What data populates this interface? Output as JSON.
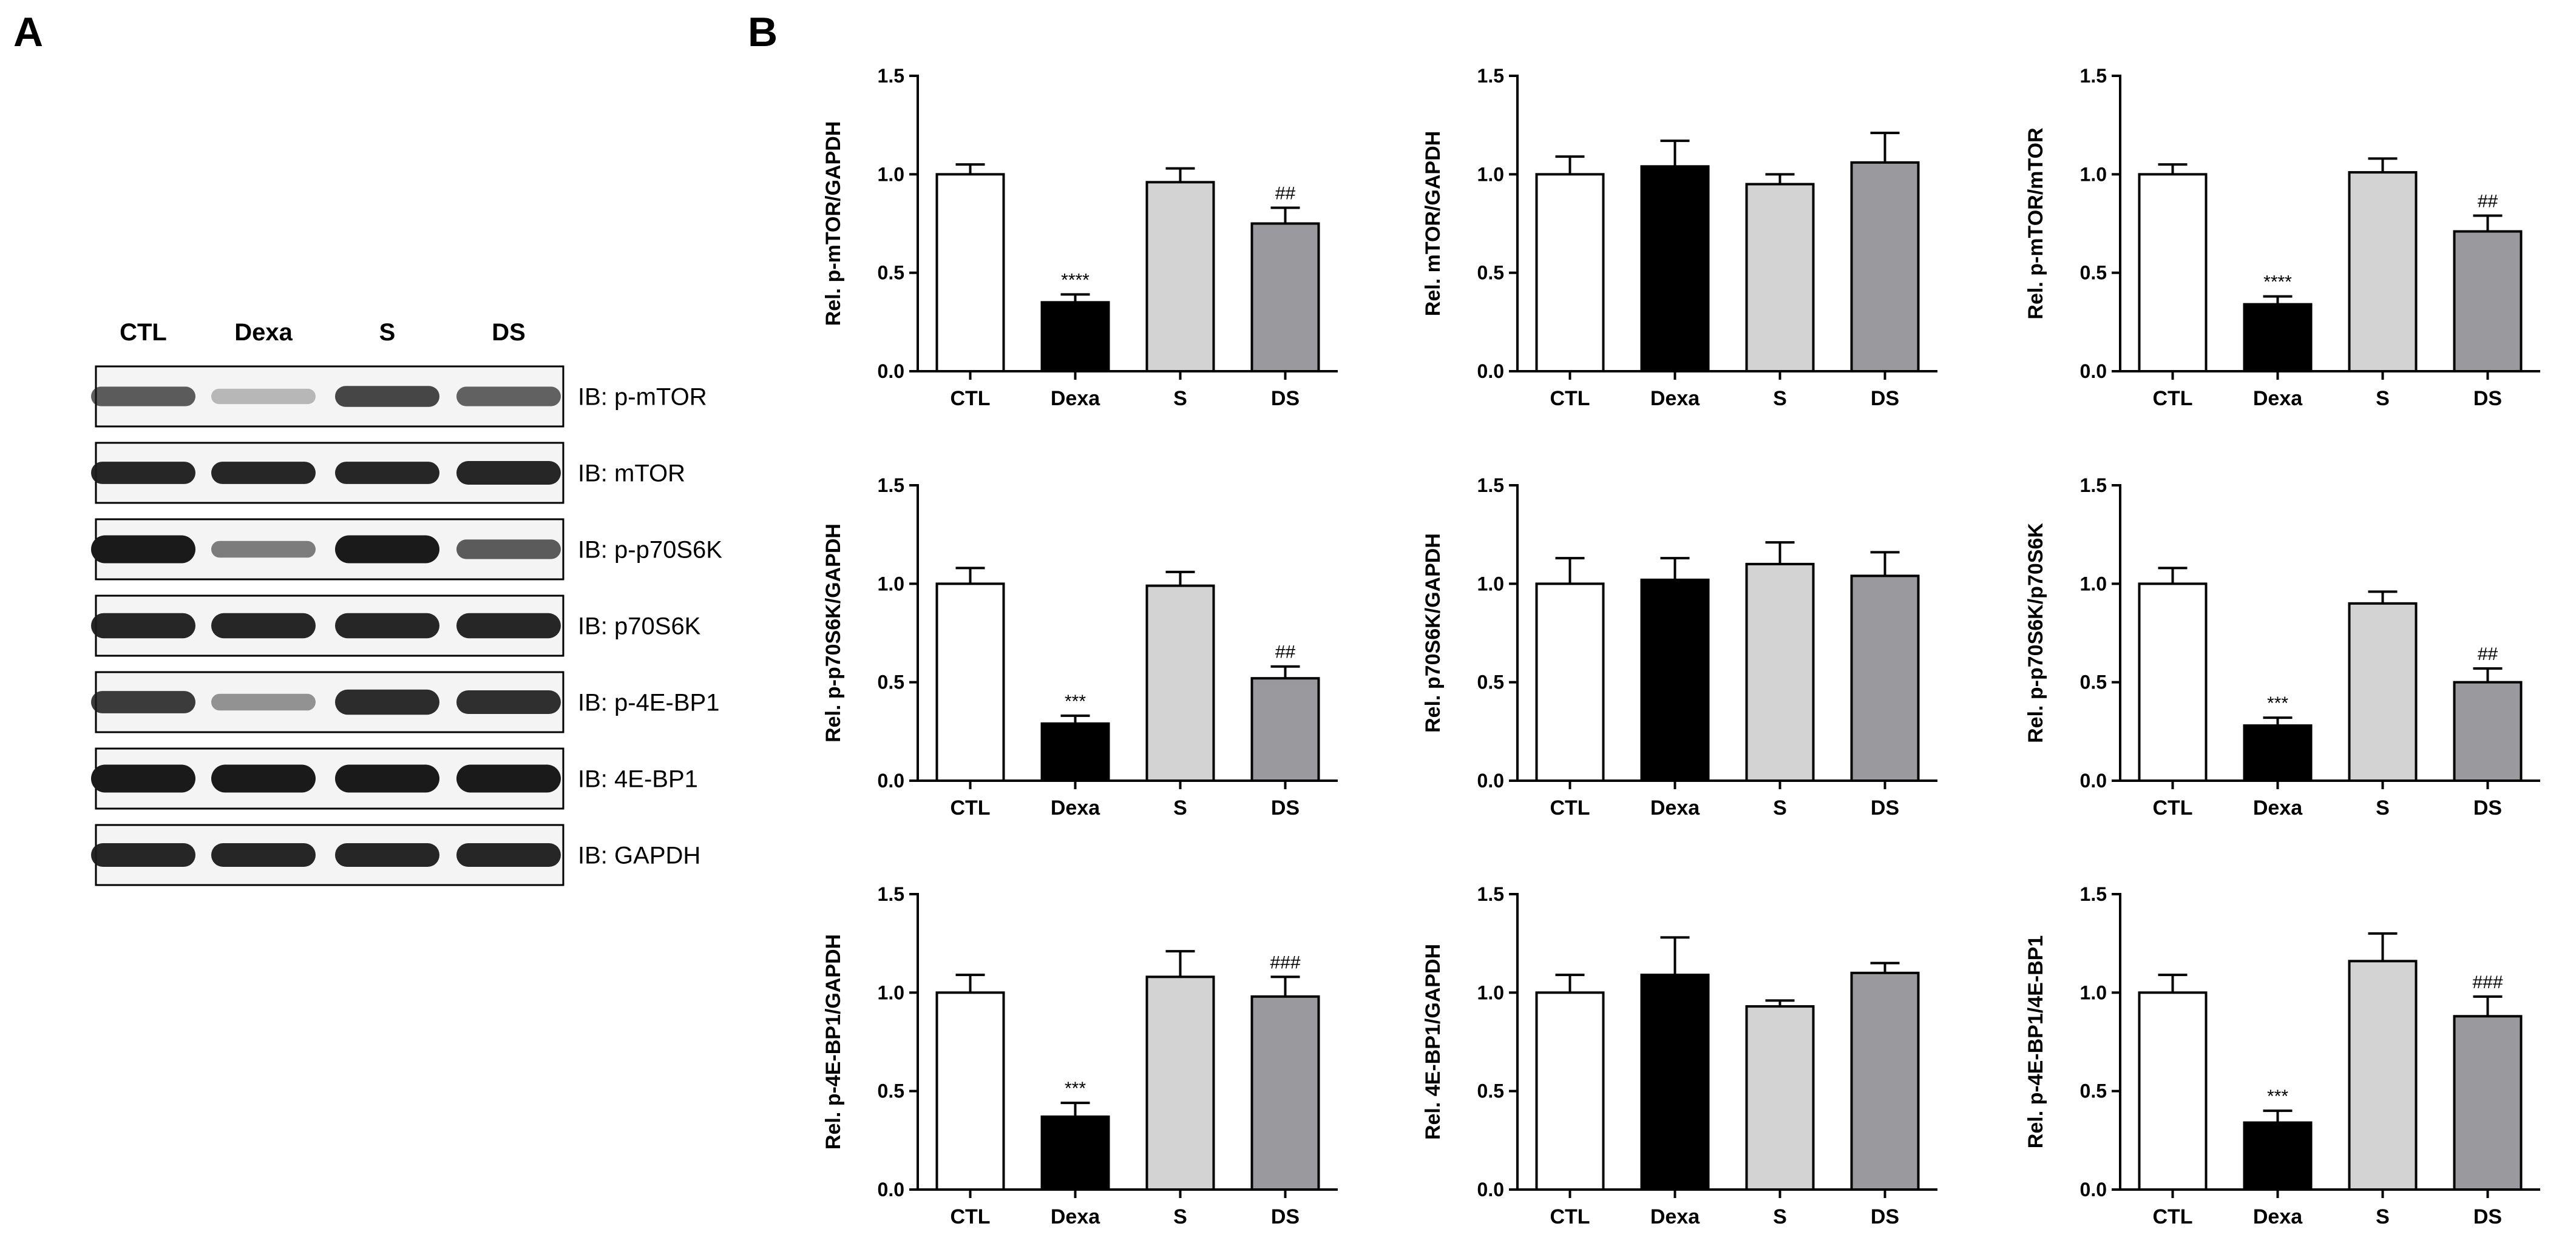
{
  "figure": {
    "panel_a_label": "A",
    "panel_b_label": "B"
  },
  "blot": {
    "lanes": [
      "CTL",
      "Dexa",
      "S",
      "DS"
    ],
    "rows": [
      {
        "label": "IB: p-mTOR",
        "intensity": [
          0.7,
          0.28,
          0.8,
          0.68
        ],
        "thickness": [
          0.7,
          0.55,
          0.75,
          0.7
        ]
      },
      {
        "label": "IB: mTOR",
        "intensity": [
          0.95,
          0.95,
          0.95,
          0.95
        ],
        "thickness": [
          0.8,
          0.8,
          0.8,
          0.85
        ]
      },
      {
        "label": "IB: p-p70S6K",
        "intensity": [
          1.0,
          0.55,
          1.0,
          0.7
        ],
        "thickness": [
          1.0,
          0.6,
          1.0,
          0.7
        ]
      },
      {
        "label": "IB: p70S6K",
        "intensity": [
          0.95,
          0.95,
          0.95,
          0.95
        ],
        "thickness": [
          0.9,
          0.9,
          0.9,
          0.9
        ]
      },
      {
        "label": "IB: p-4E-BP1",
        "intensity": [
          0.85,
          0.45,
          0.92,
          0.9
        ],
        "thickness": [
          0.8,
          0.6,
          0.9,
          0.85
        ]
      },
      {
        "label": "IB: 4E-BP1",
        "intensity": [
          1.0,
          1.0,
          1.0,
          1.0
        ],
        "thickness": [
          1.0,
          1.0,
          1.0,
          1.0
        ]
      },
      {
        "label": "IB: GAPDH",
        "intensity": [
          0.95,
          0.95,
          0.95,
          0.95
        ],
        "thickness": [
          0.85,
          0.85,
          0.85,
          0.85
        ]
      }
    ]
  },
  "colors": {
    "bar_fills": [
      "#ffffff",
      "#000000",
      "#d3d3d3",
      "#9a9a9e"
    ],
    "stroke": "#000000",
    "band": "#1a1a1a"
  },
  "chart_data": [
    {
      "type": "bar",
      "ylabel": "Rel. p-mTOR/GAPDH",
      "categories": [
        "CTL",
        "Dexa",
        "S",
        "DS"
      ],
      "values": [
        1.0,
        0.35,
        0.96,
        0.75
      ],
      "errors": [
        0.05,
        0.04,
        0.07,
        0.08
      ],
      "annotations": [
        "",
        "****",
        "",
        "##"
      ],
      "ylim": [
        0,
        1.5
      ],
      "yticks": [
        "0.0",
        "0.5",
        "1.0",
        "1.5"
      ]
    },
    {
      "type": "bar",
      "ylabel": "Rel. mTOR/GAPDH",
      "categories": [
        "CTL",
        "Dexa",
        "S",
        "DS"
      ],
      "values": [
        1.0,
        1.04,
        0.95,
        1.06
      ],
      "errors": [
        0.09,
        0.13,
        0.05,
        0.15
      ],
      "annotations": [
        "",
        "",
        "",
        ""
      ],
      "ylim": [
        0,
        1.5
      ],
      "yticks": [
        "0.0",
        "0.5",
        "1.0",
        "1.5"
      ]
    },
    {
      "type": "bar",
      "ylabel": "Rel. p-mTOR/mTOR",
      "categories": [
        "CTL",
        "Dexa",
        "S",
        "DS"
      ],
      "values": [
        1.0,
        0.34,
        1.01,
        0.71
      ],
      "errors": [
        0.05,
        0.04,
        0.07,
        0.08
      ],
      "annotations": [
        "",
        "****",
        "",
        "##"
      ],
      "ylim": [
        0,
        1.5
      ],
      "yticks": [
        "0.0",
        "0.5",
        "1.0",
        "1.5"
      ]
    },
    {
      "type": "bar",
      "ylabel": "Rel. p-p70S6K/GAPDH",
      "categories": [
        "CTL",
        "Dexa",
        "S",
        "DS"
      ],
      "values": [
        1.0,
        0.29,
        0.99,
        0.52
      ],
      "errors": [
        0.08,
        0.04,
        0.07,
        0.06
      ],
      "annotations": [
        "",
        "***",
        "",
        "##"
      ],
      "ylim": [
        0,
        1.5
      ],
      "yticks": [
        "0.0",
        "0.5",
        "1.0",
        "1.5"
      ]
    },
    {
      "type": "bar",
      "ylabel": "Rel. p70S6K/GAPDH",
      "categories": [
        "CTL",
        "Dexa",
        "S",
        "DS"
      ],
      "values": [
        1.0,
        1.02,
        1.1,
        1.04
      ],
      "errors": [
        0.13,
        0.11,
        0.11,
        0.12
      ],
      "annotations": [
        "",
        "",
        "",
        ""
      ],
      "ylim": [
        0,
        1.5
      ],
      "yticks": [
        "0.0",
        "0.5",
        "1.0",
        "1.5"
      ]
    },
    {
      "type": "bar",
      "ylabel": "Rel. p-p70S6K/p70S6K",
      "categories": [
        "CTL",
        "Dexa",
        "S",
        "DS"
      ],
      "values": [
        1.0,
        0.28,
        0.9,
        0.5
      ],
      "errors": [
        0.08,
        0.04,
        0.06,
        0.07
      ],
      "annotations": [
        "",
        "***",
        "",
        "##"
      ],
      "ylim": [
        0,
        1.5
      ],
      "yticks": [
        "0.0",
        "0.5",
        "1.0",
        "1.5"
      ]
    },
    {
      "type": "bar",
      "ylabel": "Rel. p-4E-BP1/GAPDH",
      "categories": [
        "CTL",
        "Dexa",
        "S",
        "DS"
      ],
      "values": [
        1.0,
        0.37,
        1.08,
        0.98
      ],
      "errors": [
        0.09,
        0.07,
        0.13,
        0.1
      ],
      "annotations": [
        "",
        "***",
        "",
        "###"
      ],
      "ylim": [
        0,
        1.5
      ],
      "yticks": [
        "0.0",
        "0.5",
        "1.0",
        "1.5"
      ]
    },
    {
      "type": "bar",
      "ylabel": "Rel. 4E-BP1/GAPDH",
      "categories": [
        "CTL",
        "Dexa",
        "S",
        "DS"
      ],
      "values": [
        1.0,
        1.09,
        0.93,
        1.1
      ],
      "errors": [
        0.09,
        0.19,
        0.03,
        0.05
      ],
      "annotations": [
        "",
        "",
        "",
        ""
      ],
      "ylim": [
        0,
        1.5
      ],
      "yticks": [
        "0.0",
        "0.5",
        "1.0",
        "1.5"
      ]
    },
    {
      "type": "bar",
      "ylabel": "Rel. p-4E-BP1/4E-BP1",
      "categories": [
        "CTL",
        "Dexa",
        "S",
        "DS"
      ],
      "values": [
        1.0,
        0.34,
        1.16,
        0.88
      ],
      "errors": [
        0.09,
        0.06,
        0.14,
        0.1
      ],
      "annotations": [
        "",
        "***",
        "",
        "###"
      ],
      "ylim": [
        0,
        1.5
      ],
      "yticks": [
        "0.0",
        "0.5",
        "1.0",
        "1.5"
      ]
    }
  ]
}
